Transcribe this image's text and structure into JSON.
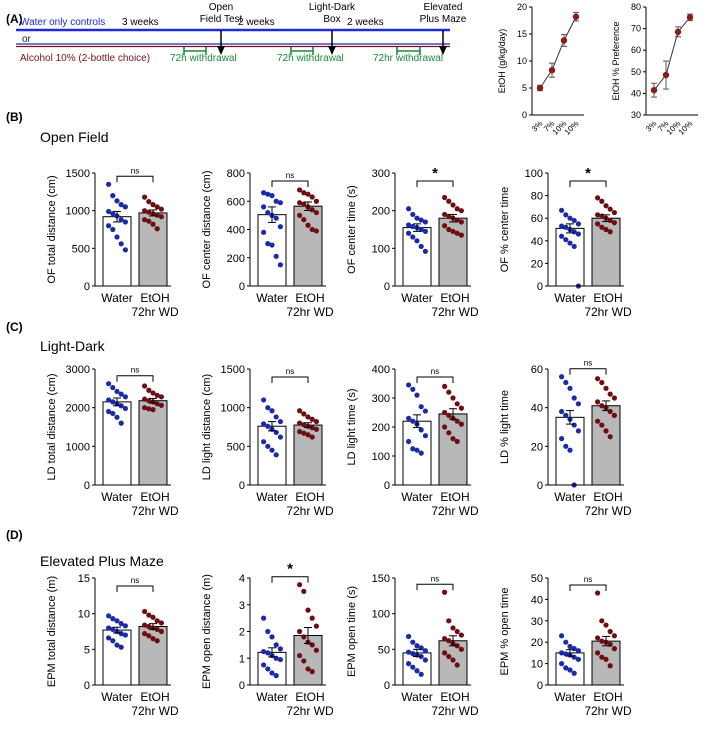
{
  "panel_labels": {
    "A": "(A)",
    "B": "(B)",
    "C": "(C)",
    "D": "(D)"
  },
  "colors": {
    "water": "#1a2aa8",
    "etoh": "#6e0e12",
    "alcohol_line": "#7a1216",
    "water_line": "#1f2ad6",
    "withdrawal": "#1e8a3a",
    "bar_fill": "#b8b8b8"
  },
  "timeline": {
    "water_label": "Water only controls",
    "or_label": "or",
    "alcohol_label": "Alcohol 10% (2-bottle choice)",
    "intervals": [
      "3 weeks",
      "2 weeks",
      "2 weeks"
    ],
    "tests": [
      "Open\nField Test",
      "Light-Dark\nBox",
      "Elevated\nPlus Maze"
    ],
    "withdrawal_labels": [
      "72h withdrawal",
      "72h withdrawal",
      "72hr withdrawal"
    ]
  },
  "sections": {
    "B": "Open Field",
    "C": "Light-Dark",
    "D": "Elevated Plus Maze"
  },
  "group_labels": {
    "water": "Water",
    "etoh": "EtOH",
    "etoh_sub": "72hr WD"
  },
  "chart_data": [
    {
      "type": "line",
      "id": "intake",
      "ylabel": "EtOH (g/kg/day)",
      "categories": [
        "3%",
        "7%",
        "10%",
        "10%"
      ],
      "values": [
        5,
        8.3,
        13.8,
        18.2
      ],
      "errors": [
        0.5,
        1.3,
        1.1,
        0.8
      ],
      "ylim": [
        0,
        20
      ],
      "yticks": [
        0,
        5,
        10,
        15,
        20
      ]
    },
    {
      "type": "line",
      "id": "preference",
      "ylabel": "EtOH % Preference",
      "categories": [
        "3%",
        "7%",
        "10%",
        "10%"
      ],
      "values": [
        41.5,
        48.5,
        68.5,
        75.2
      ],
      "errors": [
        3.2,
        6.5,
        2.3,
        1.5
      ],
      "ylim": [
        30,
        80
      ],
      "yticks": [
        30,
        40,
        50,
        60,
        70,
        80
      ]
    },
    {
      "type": "bar",
      "id": "of_total",
      "ylabel": "OF total distance (cm)",
      "ylim": [
        0,
        1500
      ],
      "yticks": [
        0,
        500,
        1000,
        1500
      ],
      "sig": "ns",
      "means": [
        920,
        970
      ],
      "sems": [
        70,
        40
      ],
      "water_points": [
        1350,
        1200,
        1130,
        1080,
        1050,
        990,
        960,
        930,
        880,
        850,
        800,
        750,
        650,
        560,
        480
      ],
      "etoh_points": [
        1180,
        1120,
        1080,
        1050,
        1020,
        1000,
        980,
        960,
        940,
        920,
        880,
        860,
        820,
        760
      ]
    },
    {
      "type": "bar",
      "id": "of_center",
      "ylabel": "OF center distance (cm)",
      "ylim": [
        0,
        800
      ],
      "yticks": [
        0,
        200,
        400,
        600,
        800
      ],
      "sig": "ns",
      "means": [
        505,
        565
      ],
      "sems": [
        55,
        30
      ],
      "water_points": [
        660,
        650,
        640,
        600,
        590,
        560,
        520,
        500,
        480,
        420,
        380,
        300,
        290,
        210,
        150
      ],
      "etoh_points": [
        680,
        660,
        650,
        630,
        600,
        590,
        580,
        560,
        540,
        520,
        500,
        470,
        430,
        400,
        390
      ]
    },
    {
      "type": "bar",
      "id": "of_time",
      "ylabel": "OF center time (s)",
      "ylim": [
        0,
        300
      ],
      "yticks": [
        0,
        100,
        200,
        300
      ],
      "sig": "*",
      "means": [
        155,
        180
      ],
      "sems": [
        10,
        10
      ],
      "water_points": [
        205,
        190,
        180,
        175,
        170,
        162,
        158,
        155,
        150,
        145,
        140,
        130,
        120,
        105,
        92
      ],
      "etoh_points": [
        235,
        225,
        215,
        205,
        200,
        190,
        185,
        180,
        175,
        170,
        160,
        150,
        145,
        140,
        135
      ]
    },
    {
      "type": "bar",
      "id": "of_pct",
      "ylabel": "OF % center time",
      "ylim": [
        0,
        100
      ],
      "yticks": [
        0,
        20,
        40,
        60,
        80,
        100
      ],
      "sig": "*",
      "means": [
        51,
        60
      ],
      "sems": [
        4,
        3
      ],
      "water_points": [
        67,
        63,
        60,
        58,
        55,
        53,
        52,
        50,
        48,
        46,
        44,
        41,
        38,
        35,
        0
      ],
      "etoh_points": [
        78,
        75,
        71,
        68,
        65,
        63,
        62,
        60,
        58,
        56,
        55,
        52,
        50,
        48
      ]
    },
    {
      "type": "bar",
      "id": "ld_total",
      "ylabel": "LD total distance (cm)",
      "ylim": [
        0,
        3000
      ],
      "yticks": [
        0,
        1000,
        2000,
        3000
      ],
      "sig": "ns",
      "means": [
        2150,
        2180
      ],
      "sems": [
        100,
        60
      ],
      "water_points": [
        2620,
        2520,
        2420,
        2350,
        2280,
        2200,
        2150,
        2100,
        2050,
        1980,
        1900,
        1850,
        1750,
        1600
      ],
      "etoh_points": [
        2560,
        2450,
        2380,
        2320,
        2280,
        2220,
        2180,
        2150,
        2100,
        2060,
        2000,
        1970,
        1950
      ]
    },
    {
      "type": "bar",
      "id": "ld_light",
      "ylabel": "LD light distance (cm)",
      "ylim": [
        0,
        1500
      ],
      "yticks": [
        0,
        500,
        1000,
        1500
      ],
      "sig": "ns",
      "means": [
        760,
        775
      ],
      "sems": [
        60,
        30
      ],
      "water_points": [
        1100,
        1000,
        960,
        880,
        820,
        790,
        760,
        720,
        680,
        620,
        560,
        500,
        450,
        390
      ],
      "etoh_points": [
        960,
        920,
        880,
        850,
        820,
        800,
        780,
        760,
        740,
        720,
        690,
        670,
        650,
        620
      ]
    },
    {
      "type": "bar",
      "id": "ld_time",
      "ylabel": "LD light time (s)",
      "ylim": [
        0,
        400
      ],
      "yticks": [
        0,
        100,
        200,
        300,
        400
      ],
      "sig": "ns",
      "means": [
        220,
        245
      ],
      "sems": [
        22,
        18
      ],
      "water_points": [
        345,
        330,
        310,
        270,
        255,
        230,
        220,
        210,
        190,
        170,
        150,
        125,
        120,
        110
      ],
      "etoh_points": [
        340,
        320,
        300,
        280,
        265,
        250,
        240,
        230,
        220,
        210,
        200,
        180,
        160,
        150
      ]
    },
    {
      "type": "bar",
      "id": "ld_pct",
      "ylabel": "LD % light time",
      "ylim": [
        0,
        60
      ],
      "yticks": [
        0,
        20,
        40,
        60
      ],
      "sig": "ns",
      "means": [
        35,
        41
      ],
      "sems": [
        3.5,
        2.5
      ],
      "water_points": [
        56,
        53,
        50,
        45,
        42,
        38,
        36,
        34,
        31,
        28,
        24,
        20,
        18,
        0
      ],
      "etoh_points": [
        55,
        53,
        50,
        47,
        45,
        43,
        41,
        40,
        38,
        36,
        33,
        31,
        28,
        25
      ]
    },
    {
      "type": "bar",
      "id": "epm_total",
      "ylabel": "EPM total distance (m)",
      "ylim": [
        0,
        15
      ],
      "yticks": [
        0,
        5,
        10,
        15
      ],
      "sig": "ns",
      "means": [
        7.7,
        8.2
      ],
      "sems": [
        0.4,
        0.4
      ],
      "water_points": [
        9.7,
        9.3,
        9.0,
        8.6,
        8.3,
        8.0,
        7.8,
        7.5,
        7.2,
        7.0,
        6.6,
        6.2,
        5.6,
        5.3
      ],
      "etoh_points": [
        10.3,
        9.8,
        9.5,
        9.0,
        8.7,
        8.4,
        8.2,
        8.0,
        7.8,
        7.5,
        7.2,
        6.9,
        6.5,
        6.2
      ]
    },
    {
      "type": "bar",
      "id": "epm_dist",
      "ylabel": "EPM open distance (m)",
      "ylim": [
        0,
        4
      ],
      "yticks": [
        0,
        1,
        2,
        3,
        4
      ],
      "sig": "*",
      "means": [
        1.22,
        1.85
      ],
      "sems": [
        0.17,
        0.3
      ],
      "water_points": [
        2.5,
        2.0,
        1.8,
        1.5,
        1.35,
        1.25,
        1.2,
        1.1,
        1.0,
        0.95,
        0.75,
        0.6,
        0.45,
        0.35
      ],
      "etoh_points": [
        3.75,
        3.5,
        2.8,
        2.5,
        2.2,
        2.0,
        1.8,
        1.6,
        1.5,
        1.3,
        1.1,
        0.9,
        0.6,
        0.5
      ]
    },
    {
      "type": "bar",
      "id": "epm_time",
      "ylabel": "EPM open time (s)",
      "ylim": [
        0,
        150
      ],
      "yticks": [
        0,
        50,
        100,
        150
      ],
      "sig": "ns",
      "means": [
        45,
        62
      ],
      "sems": [
        5,
        7
      ],
      "water_points": [
        68,
        60,
        55,
        52,
        48,
        46,
        44,
        42,
        40,
        35,
        30,
        25,
        20,
        15
      ],
      "etoh_points": [
        130,
        90,
        80,
        75,
        70,
        65,
        62,
        58,
        55,
        50,
        45,
        40,
        35,
        28
      ]
    },
    {
      "type": "bar",
      "id": "epm_pct",
      "ylabel": "EPM % open time",
      "ylim": [
        0,
        50
      ],
      "yticks": [
        0,
        10,
        20,
        30,
        40,
        50
      ],
      "sig": "ns",
      "means": [
        15,
        20.5
      ],
      "sems": [
        1.5,
        2.2
      ],
      "water_points": [
        23,
        20,
        18,
        17,
        16,
        15,
        14.5,
        14,
        13,
        12,
        10,
        8,
        7,
        5.5
      ],
      "etoh_points": [
        43,
        30,
        28,
        25,
        23,
        22,
        20.5,
        20,
        19,
        17,
        15,
        13,
        12,
        9
      ]
    }
  ]
}
